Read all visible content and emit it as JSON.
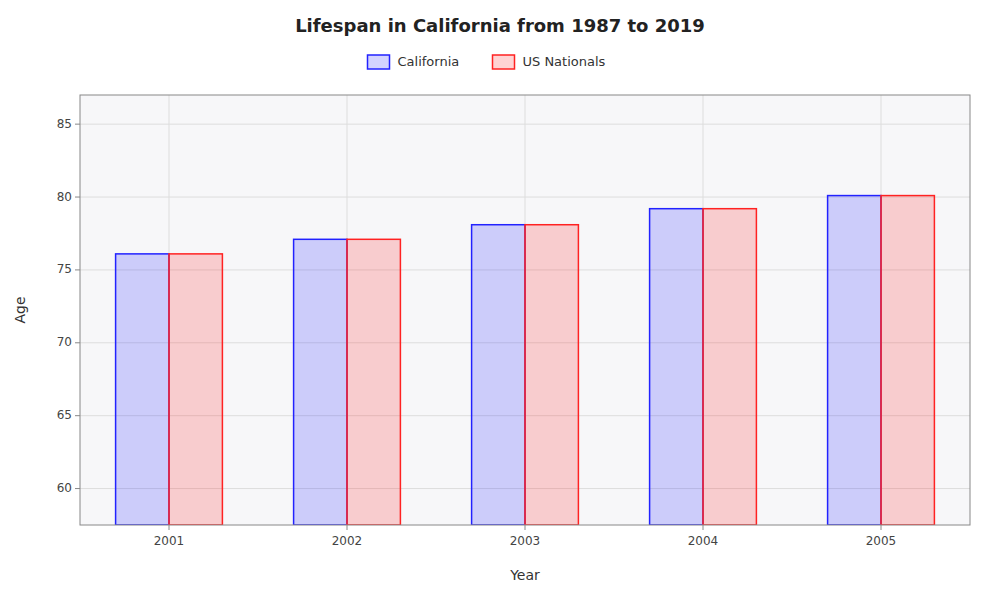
{
  "chart_data": {
    "type": "bar",
    "title": "Lifespan in California from 1987 to 2019",
    "x_label": "Year",
    "y_label": "Age",
    "categories": [
      "2001",
      "2002",
      "2003",
      "2004",
      "2005"
    ],
    "series": [
      {
        "name": "California",
        "color": "#2222ff",
        "values": [
          76.1,
          77.1,
          78.1,
          79.2,
          80.1
        ]
      },
      {
        "name": "US Nationals",
        "color": "#ff2222",
        "values": [
          76.1,
          77.1,
          78.1,
          79.2,
          80.1
        ]
      }
    ],
    "ylim": [
      57.5,
      87
    ],
    "yticks": [
      60,
      65,
      70,
      75,
      80,
      85
    ],
    "grid": true,
    "legend": "top"
  }
}
